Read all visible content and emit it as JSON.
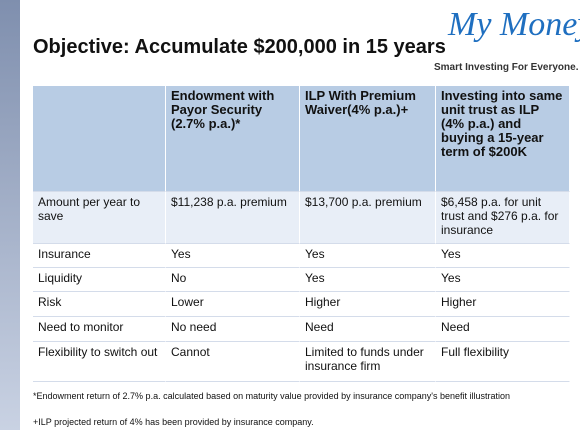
{
  "header": {
    "title": "Objective: Accumulate $200,000 in 15 years"
  },
  "logo": {
    "name": "My Money",
    "tagline": "Smart Investing For Everyone."
  },
  "table": {
    "columns": [
      "Endowment with Payor Security (2.7% p.a.)*",
      "ILP With Premium Waiver(4% p.a.)+",
      "Investing into same unit trust as ILP (4% p.a.) and buying a 15-year term of $200K"
    ],
    "rows": [
      [
        "Amount per year to save",
        "$11,238 p.a. premium",
        "$13,700 p.a. premium",
        "$6,458 p.a. for unit trust and $276 p.a. for insurance"
      ],
      [
        "Insurance",
        "Yes",
        "Yes",
        "Yes"
      ],
      [
        "Liquidity",
        "No",
        "Yes",
        "Yes"
      ],
      [
        "Risk",
        "Lower",
        "Higher",
        "Higher"
      ],
      [
        "Need to monitor",
        "No need",
        "Need",
        "Need"
      ],
      [
        "Flexibility to switch out",
        "Cannot",
        "Limited to funds under insurance firm",
        "Full flexibility"
      ]
    ]
  },
  "footnotes": [
    "*Endowment return of 2.7% p.a. calculated based on maturity value provided by insurance company's benefit illustration",
    "+ILP projected return of 4% has been provided by insurance company."
  ]
}
